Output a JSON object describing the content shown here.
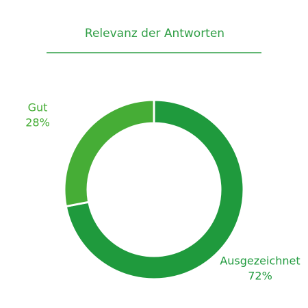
{
  "chart_data": {
    "type": "donut",
    "title": "Relevanz der Antworten",
    "categories": [
      "Ausgezeichnet",
      "Gut"
    ],
    "values": [
      72,
      28
    ],
    "value_labels": [
      "72%",
      "28%"
    ],
    "colors": [
      "#1f9a3d",
      "#46ad36"
    ]
  }
}
